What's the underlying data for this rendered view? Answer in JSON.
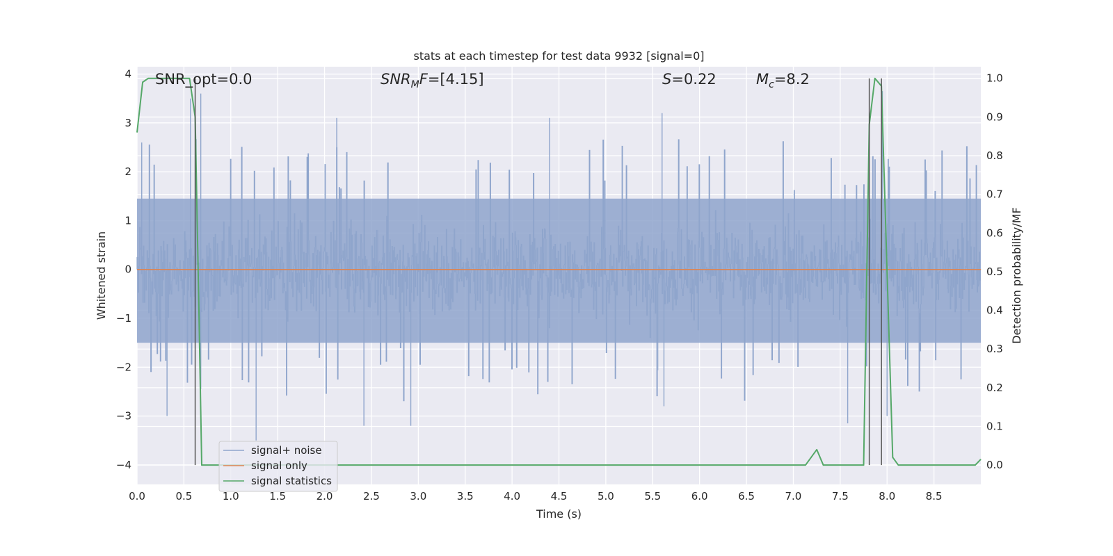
{
  "chart_data": {
    "type": "line",
    "title": "stats at each timestep for test data 9932 [signal=0]",
    "xlabel": "Time (s)",
    "ylabel": "Whitened strain",
    "y2label": "Detection probability/MF",
    "xlim": [
      0.0,
      9.0
    ],
    "ylim": [
      -4.4,
      4.15
    ],
    "y2lim": [
      -0.05,
      1.03
    ],
    "x_ticks": [
      "0.0",
      "0.5",
      "1.0",
      "1.5",
      "2.0",
      "2.5",
      "3.0",
      "3.5",
      "4.0",
      "4.5",
      "5.0",
      "5.5",
      "6.0",
      "6.5",
      "7.0",
      "7.5",
      "8.0",
      "8.5"
    ],
    "y_ticks": [
      "4",
      "3",
      "2",
      "1",
      "0",
      "−1",
      "−2",
      "−3",
      "−4"
    ],
    "y2_ticks": [
      "1.0",
      "0.9",
      "0.8",
      "0.7",
      "0.6",
      "0.5",
      "0.4",
      "0.3",
      "0.2",
      "0.1",
      "0.0"
    ],
    "grid": true,
    "legend_position": "lower-left",
    "annotations": {
      "snr_opt": "SNR_opt=0.0",
      "snr_mf_label": "SNR",
      "snr_mf_sub": "M",
      "snr_mf_label2": "F",
      "snr_mf_value": "=[4.15]",
      "s_label": "S",
      "s_value": "=0.22",
      "mc_label": "M",
      "mc_sub": "c",
      "mc_value": "=8.2"
    },
    "series": [
      {
        "name": "signal+ noise",
        "color": "#8fa5cc",
        "description_only": "whitened noise, values between about -3.4 and 3.8",
        "noise_band": [
          -1.5,
          1.45
        ],
        "extreme_spikes": [
          [
            0.05,
            2.6
          ],
          [
            0.32,
            -3.0
          ],
          [
            0.57,
            3.5
          ],
          [
            0.68,
            3.6
          ],
          [
            0.68,
            -2.45
          ],
          [
            1.27,
            -3.5
          ],
          [
            2.13,
            3.1
          ],
          [
            2.42,
            -3.2
          ],
          [
            2.92,
            -3.2
          ],
          [
            4.4,
            3.1
          ],
          [
            5.6,
            3.2
          ],
          [
            5.62,
            -2.8
          ],
          [
            7.58,
            -3.15
          ],
          [
            7.95,
            3.65
          ],
          [
            8.0,
            -3.0
          ]
        ]
      },
      {
        "name": "signal only",
        "color": "#dd8452",
        "x": [
          0.0,
          9.0
        ],
        "y": [
          0.0,
          0.0
        ]
      },
      {
        "name": "signal statistics",
        "color": "#55a868",
        "axis": "right",
        "x": [
          0.0,
          0.06,
          0.12,
          0.2,
          0.3,
          0.4,
          0.5,
          0.56,
          0.62,
          0.66,
          0.69,
          0.75,
          1.0,
          2.0,
          3.0,
          4.0,
          5.0,
          6.0,
          7.0,
          7.13,
          7.25,
          7.32,
          7.5,
          7.75,
          7.81,
          7.87,
          7.94,
          8.0,
          8.06,
          8.12,
          8.19,
          8.5,
          8.94,
          9.0
        ],
        "y": [
          0.86,
          0.99,
          1.0,
          1.0,
          1.0,
          1.0,
          1.0,
          1.0,
          0.9,
          0.4,
          0.0,
          0.0,
          0.0,
          0.0,
          0.0,
          0.0,
          0.0,
          0.0,
          0.0,
          0.0,
          0.04,
          0.0,
          0.0,
          0.0,
          0.88,
          1.0,
          0.98,
          0.5,
          0.02,
          0.0,
          0.0,
          0.0,
          0.0,
          0.015
        ]
      }
    ],
    "vertical_lines": [
      0.62,
      7.81,
      7.94
    ],
    "vertical_line_color": "#555555"
  }
}
